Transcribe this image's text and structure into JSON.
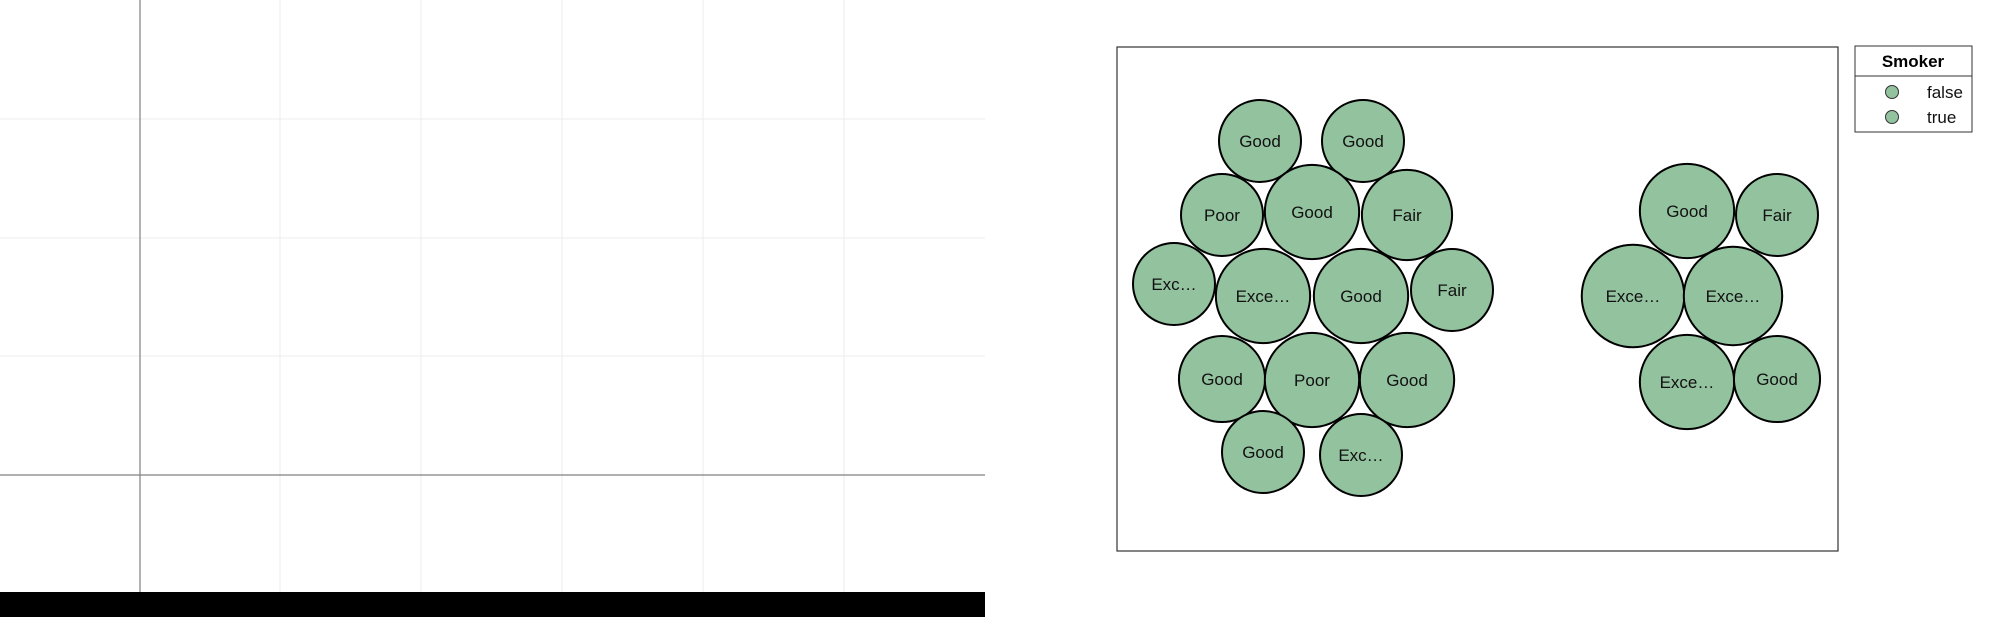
{
  "colors": {
    "bubble_fill": "#93c29f",
    "bubble_stroke": "#000000",
    "grid_line": "#ececec",
    "axis_line": "#808080",
    "bottom_bar": "#000000",
    "panel_border": "#333333"
  },
  "chart_data": [
    {
      "type": "line",
      "title": "",
      "xlabel": "",
      "ylabel": "",
      "grid": true,
      "series": []
    },
    {
      "type": "bubble-cluster",
      "title": "",
      "legend": {
        "title": "Smoker",
        "placement": "right",
        "entries": [
          "false",
          "true"
        ]
      },
      "groups": [
        {
          "key": "false",
          "bubbles": [
            {
              "label": "Good",
              "size": 1.0
            },
            {
              "label": "Good",
              "size": 1.0
            },
            {
              "label": "Poor",
              "size": 1.0
            },
            {
              "label": "Good",
              "size": 1.15
            },
            {
              "label": "Fair",
              "size": 1.1
            },
            {
              "label": "Exc…",
              "size": 1.0
            },
            {
              "label": "Exce…",
              "size": 1.15
            },
            {
              "label": "Good",
              "size": 1.15
            },
            {
              "label": "Fair",
              "size": 1.0
            },
            {
              "label": "Good",
              "size": 1.05
            },
            {
              "label": "Poor",
              "size": 1.15
            },
            {
              "label": "Good",
              "size": 1.15
            },
            {
              "label": "Good",
              "size": 1.0
            },
            {
              "label": "Exc…",
              "size": 1.0
            }
          ]
        },
        {
          "key": "true",
          "bubbles": [
            {
              "label": "Good",
              "size": 1.15
            },
            {
              "label": "Fair",
              "size": 1.0
            },
            {
              "label": "Exce…",
              "size": 1.25
            },
            {
              "label": "Exce…",
              "size": 1.2
            },
            {
              "label": "Exce…",
              "size": 1.15
            },
            {
              "label": "Good",
              "size": 1.05
            }
          ]
        }
      ]
    }
  ]
}
